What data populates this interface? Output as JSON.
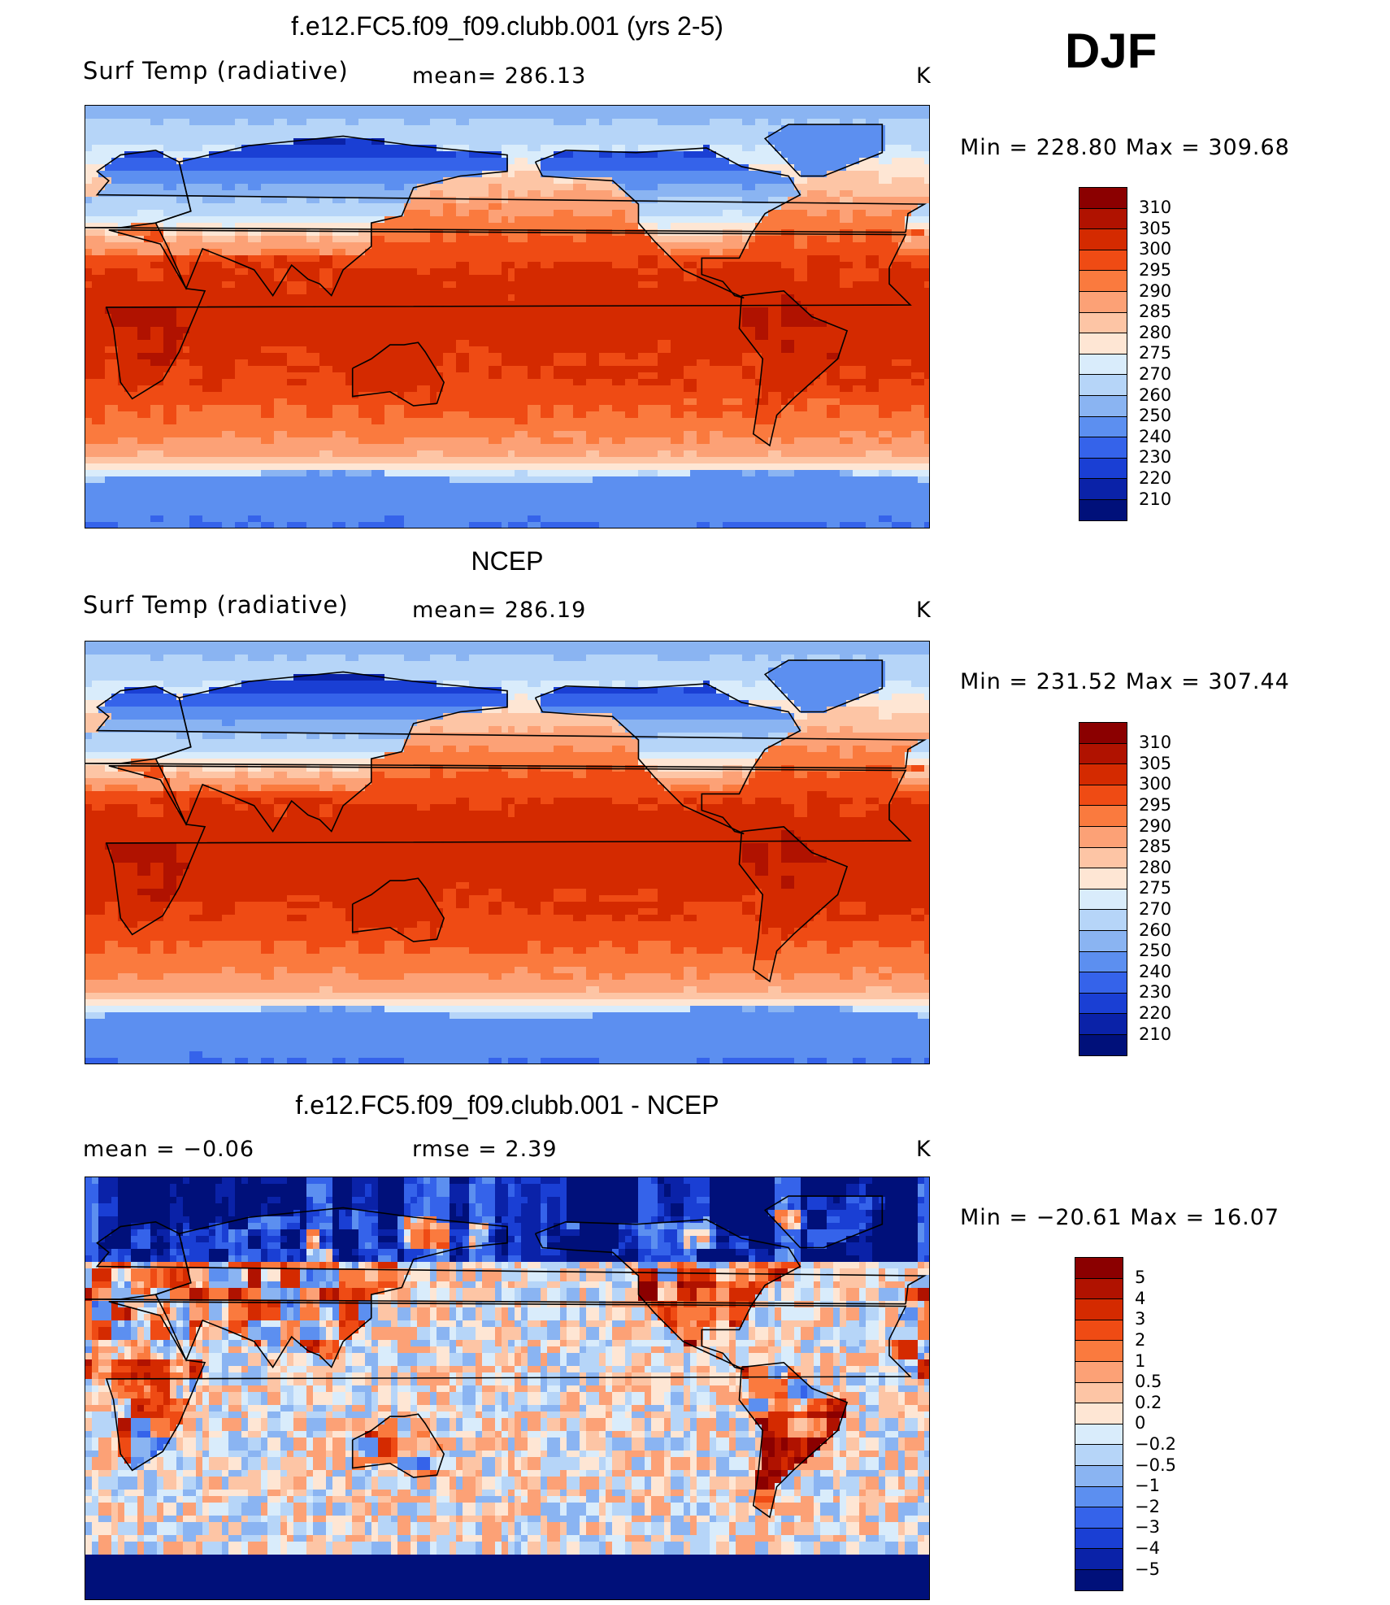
{
  "season": "DJF",
  "panels": [
    {
      "title": "f.e12.FC5.f09_f09.clubb.001 (yrs 2-5)",
      "left_label": "Surf Temp (radiative)",
      "center_label": "mean=  286.13",
      "units": "K",
      "minmax": "Min  =  228.80  Max  =  309.68",
      "colorbar_labels": [
        "310",
        "305",
        "300",
        "295",
        "290",
        "285",
        "280",
        "275",
        "270",
        "260",
        "250",
        "240",
        "230",
        "220",
        "210"
      ],
      "colorbar_colors": [
        "#8b0000",
        "#b01200",
        "#d42a00",
        "#ef4b14",
        "#fa7a3e",
        "#fca176",
        "#fdc5a5",
        "#fee6d4",
        "#d9ecfb",
        "#b6d5f8",
        "#8ab4f2",
        "#5c8ff0",
        "#3563ea",
        "#1a3fd4",
        "#0a22a8",
        "#00107a"
      ],
      "field": "model"
    },
    {
      "title": "NCEP",
      "left_label": "Surf Temp (radiative)",
      "center_label": "mean=  286.19",
      "units": "K",
      "minmax": "Min  =  231.52  Max  =  307.44",
      "colorbar_labels": [
        "310",
        "305",
        "300",
        "295",
        "290",
        "285",
        "280",
        "275",
        "270",
        "260",
        "250",
        "240",
        "230",
        "220",
        "210"
      ],
      "colorbar_colors": [
        "#8b0000",
        "#b01200",
        "#d42a00",
        "#ef4b14",
        "#fa7a3e",
        "#fca176",
        "#fdc5a5",
        "#fee6d4",
        "#d9ecfb",
        "#b6d5f8",
        "#8ab4f2",
        "#5c8ff0",
        "#3563ea",
        "#1a3fd4",
        "#0a22a8",
        "#00107a"
      ],
      "field": "obs"
    },
    {
      "title": "f.e12.FC5.f09_f09.clubb.001 - NCEP",
      "left_label": "mean  =    −0.06",
      "center_label": "rmse  =     2.39",
      "units": "K",
      "minmax": "Min  =  −20.61  Max  =    16.07",
      "colorbar_labels": [
        "5",
        "4",
        "3",
        "2",
        "1",
        "0.5",
        "0.2",
        "0",
        "−0.2",
        "−0.5",
        "−1",
        "−2",
        "−3",
        "−4",
        "−5"
      ],
      "colorbar_colors": [
        "#8b0000",
        "#b01200",
        "#d42a00",
        "#ef4b14",
        "#fa7a3e",
        "#fca176",
        "#fdc5a5",
        "#fee6d4",
        "#d9ecfb",
        "#b6d5f8",
        "#8ab4f2",
        "#5c8ff0",
        "#3563ea",
        "#1a3fd4",
        "#0a22a8",
        "#00107a"
      ],
      "field": "diff"
    }
  ]
}
